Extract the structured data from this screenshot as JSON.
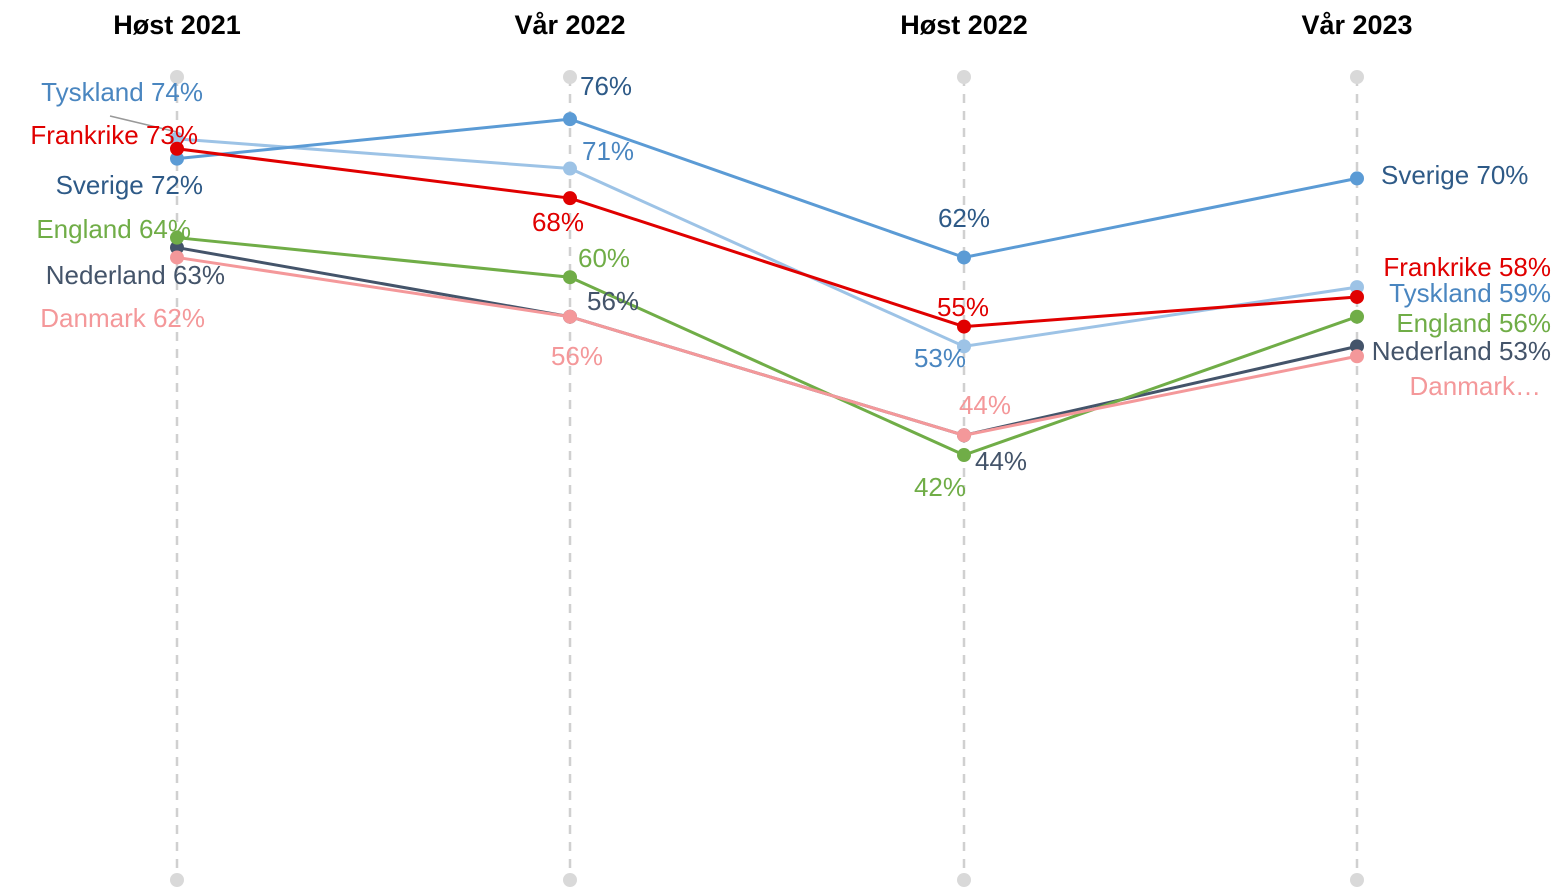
{
  "chart_data": {
    "type": "line",
    "categories": [
      "Høst 2021",
      "Vår 2022",
      "Høst 2022",
      "Vår 2023"
    ],
    "ylim": [
      0,
      80
    ],
    "series": [
      {
        "color": "#9dc3e6",
        "label_color": "#4a86c0",
        "values": [
          74,
          71,
          53,
          59
        ],
        "value_labels": [
          "Tyskland 74%",
          "71%",
          "53%",
          "Tyskland 59%"
        ]
      },
      {
        "color": "#5b9bd5",
        "label_color": "#2e5a87",
        "values": [
          72,
          76,
          62,
          70
        ],
        "value_labels": [
          "Sverige 72%",
          "76%",
          "62%",
          "Sverige 70%"
        ]
      },
      {
        "color": "#44546a",
        "label_color": "#44546a",
        "values": [
          63,
          56,
          44,
          53
        ],
        "value_labels": [
          "Nederland 63%",
          "56%",
          "44%",
          "Nederland 53%"
        ]
      },
      {
        "color": "#70ad47",
        "label_color": "#70ad47",
        "values": [
          64,
          60,
          42,
          56
        ],
        "value_labels": [
          "England 64%",
          "60%",
          "42%",
          "England 56%"
        ]
      },
      {
        "color": "#f4989a",
        "label_color": "#f4989a",
        "values": [
          62,
          56,
          44,
          52
        ],
        "value_labels": [
          "Danmark 62%",
          "56%",
          "44%",
          "Danmark…"
        ]
      },
      {
        "color": "#e00000",
        "label_color": "#e00000",
        "values": [
          73,
          68,
          55,
          58
        ],
        "value_labels": [
          "Frankrike 73%",
          "68%",
          "55%",
          "Frankrike 58%"
        ]
      }
    ]
  }
}
